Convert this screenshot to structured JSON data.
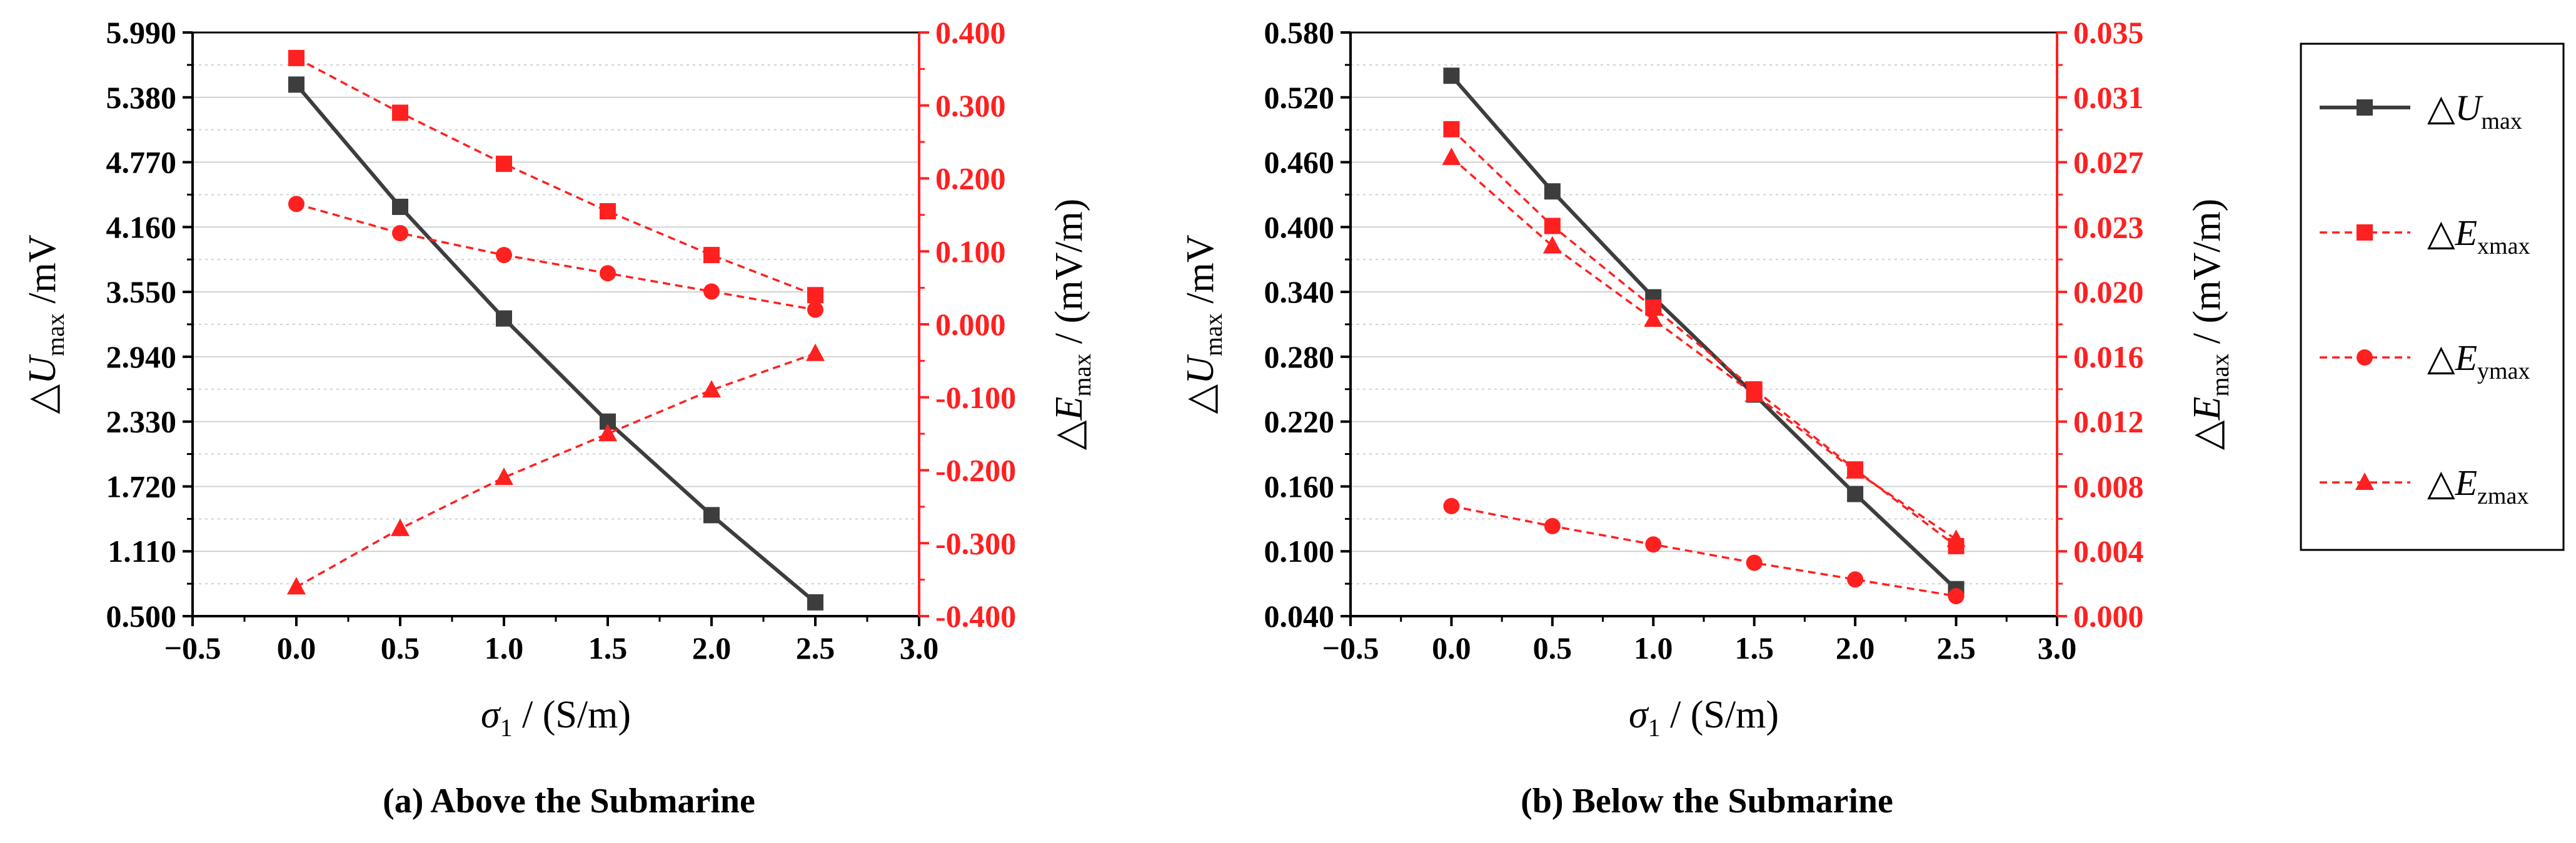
{
  "colors": {
    "u": "#3d3d3d",
    "e": "#ff2020",
    "grid": "#d0d0d0"
  },
  "chart_data": [
    {
      "type": "line",
      "caption": "(a) Above the Submarine",
      "x": [
        0.0,
        0.5,
        1.0,
        1.5,
        2.0,
        2.5
      ],
      "xlim": [
        -0.5,
        3.0
      ],
      "xticks": [
        "−0.5",
        "0.0",
        "0.5",
        "1.0",
        "1.5",
        "2.0",
        "2.5",
        "3.0"
      ],
      "xlabel": {
        "symbol": "σ",
        "sub": "1",
        "unit": " / (S/m)"
      },
      "ylabel_left": {
        "delta": "△",
        "symbol": "U",
        "sub": "max",
        "unit": " /mV"
      },
      "ylabel_right": {
        "delta": "△",
        "symbol": "E",
        "sub": "max",
        "unit": " /  (mV/m)"
      },
      "ylim_left": [
        0.5,
        5.99
      ],
      "ylim_right": [
        -0.4,
        0.4
      ],
      "yticks_left": [
        "0.500",
        "1.110",
        "1.720",
        "2.330",
        "2.940",
        "3.550",
        "4.160",
        "4.770",
        "5.380",
        "5.990"
      ],
      "yticks_right": [
        "-0.400",
        "-0.300",
        "-0.200",
        "-0.100",
        "0.000",
        "0.100",
        "0.200",
        "0.300",
        "0.400"
      ],
      "series": [
        {
          "name": "△Umax",
          "axis": "left",
          "marker": "square",
          "dashed": false,
          "values": [
            5.5,
            4.35,
            3.3,
            2.33,
            1.45,
            0.63
          ]
        },
        {
          "name": "△Exmax",
          "axis": "right",
          "marker": "square",
          "dashed": true,
          "values": [
            0.365,
            0.29,
            0.22,
            0.155,
            0.095,
            0.04
          ]
        },
        {
          "name": "△Eymax",
          "axis": "right",
          "marker": "circle",
          "dashed": true,
          "values": [
            0.165,
            0.125,
            0.095,
            0.07,
            0.045,
            0.02
          ]
        },
        {
          "name": "△Ezmax",
          "axis": "right",
          "marker": "triangle",
          "dashed": true,
          "values": [
            -0.36,
            -0.28,
            -0.21,
            -0.15,
            -0.09,
            -0.04
          ]
        }
      ]
    },
    {
      "type": "line",
      "caption": "(b) Below the Submarine",
      "x": [
        0.0,
        0.5,
        1.0,
        1.5,
        2.0,
        2.5
      ],
      "xlim": [
        -0.5,
        3.0
      ],
      "xticks": [
        "−0.5",
        "0.0",
        "0.5",
        "1.0",
        "1.5",
        "2.0",
        "2.5",
        "3.0"
      ],
      "xlabel": {
        "symbol": "σ",
        "sub": "1",
        "unit": " / (S/m)"
      },
      "ylabel_left": {
        "delta": "△",
        "symbol": "U",
        "sub": "max",
        "unit": " /mV"
      },
      "ylabel_right": {
        "delta": "△",
        "symbol": "E",
        "sub": "max",
        "unit": " /  (mV/m)"
      },
      "ylim_left": [
        0.04,
        0.58
      ],
      "ylim_right": [
        0.0,
        0.035
      ],
      "yticks_left": [
        "0.040",
        "0.100",
        "0.160",
        "0.220",
        "0.280",
        "0.340",
        "0.400",
        "0.460",
        "0.520",
        "0.580"
      ],
      "yticks_right": [
        "0.000",
        "0.004",
        "0.008",
        "0.012",
        "0.016",
        "0.020",
        "0.023",
        "0.027",
        "0.031",
        "0.035"
      ],
      "series": [
        {
          "name": "△Umax",
          "axis": "left",
          "marker": "square",
          "dashed": false,
          "values": [
            0.54,
            0.433,
            0.335,
            0.245,
            0.153,
            0.065
          ]
        },
        {
          "name": "△Exmax",
          "axis": "right",
          "marker": "square",
          "dashed": true,
          "values": [
            0.0292,
            0.0234,
            0.0185,
            0.0136,
            0.0088,
            0.0042
          ]
        },
        {
          "name": "△Eymax",
          "axis": "right",
          "marker": "circle",
          "dashed": true,
          "values": [
            0.0066,
            0.0054,
            0.0043,
            0.0032,
            0.0022,
            0.0012
          ]
        },
        {
          "name": "△Ezmax",
          "axis": "right",
          "marker": "triangle",
          "dashed": true,
          "values": [
            0.0275,
            0.0222,
            0.0178,
            0.0133,
            0.0087,
            0.0046
          ]
        }
      ]
    }
  ],
  "legend": [
    {
      "delta": "△",
      "symbol": "U",
      "sub": "max",
      "marker": "square",
      "dashed": false,
      "color_key": "u"
    },
    {
      "delta": "△",
      "symbol": "E",
      "sub": "xmax",
      "marker": "square",
      "dashed": true,
      "color_key": "e"
    },
    {
      "delta": "△",
      "symbol": "E",
      "sub": "ymax",
      "marker": "circle",
      "dashed": true,
      "color_key": "e"
    },
    {
      "delta": "△",
      "symbol": "E",
      "sub": "zmax",
      "marker": "triangle",
      "dashed": true,
      "color_key": "e"
    }
  ]
}
